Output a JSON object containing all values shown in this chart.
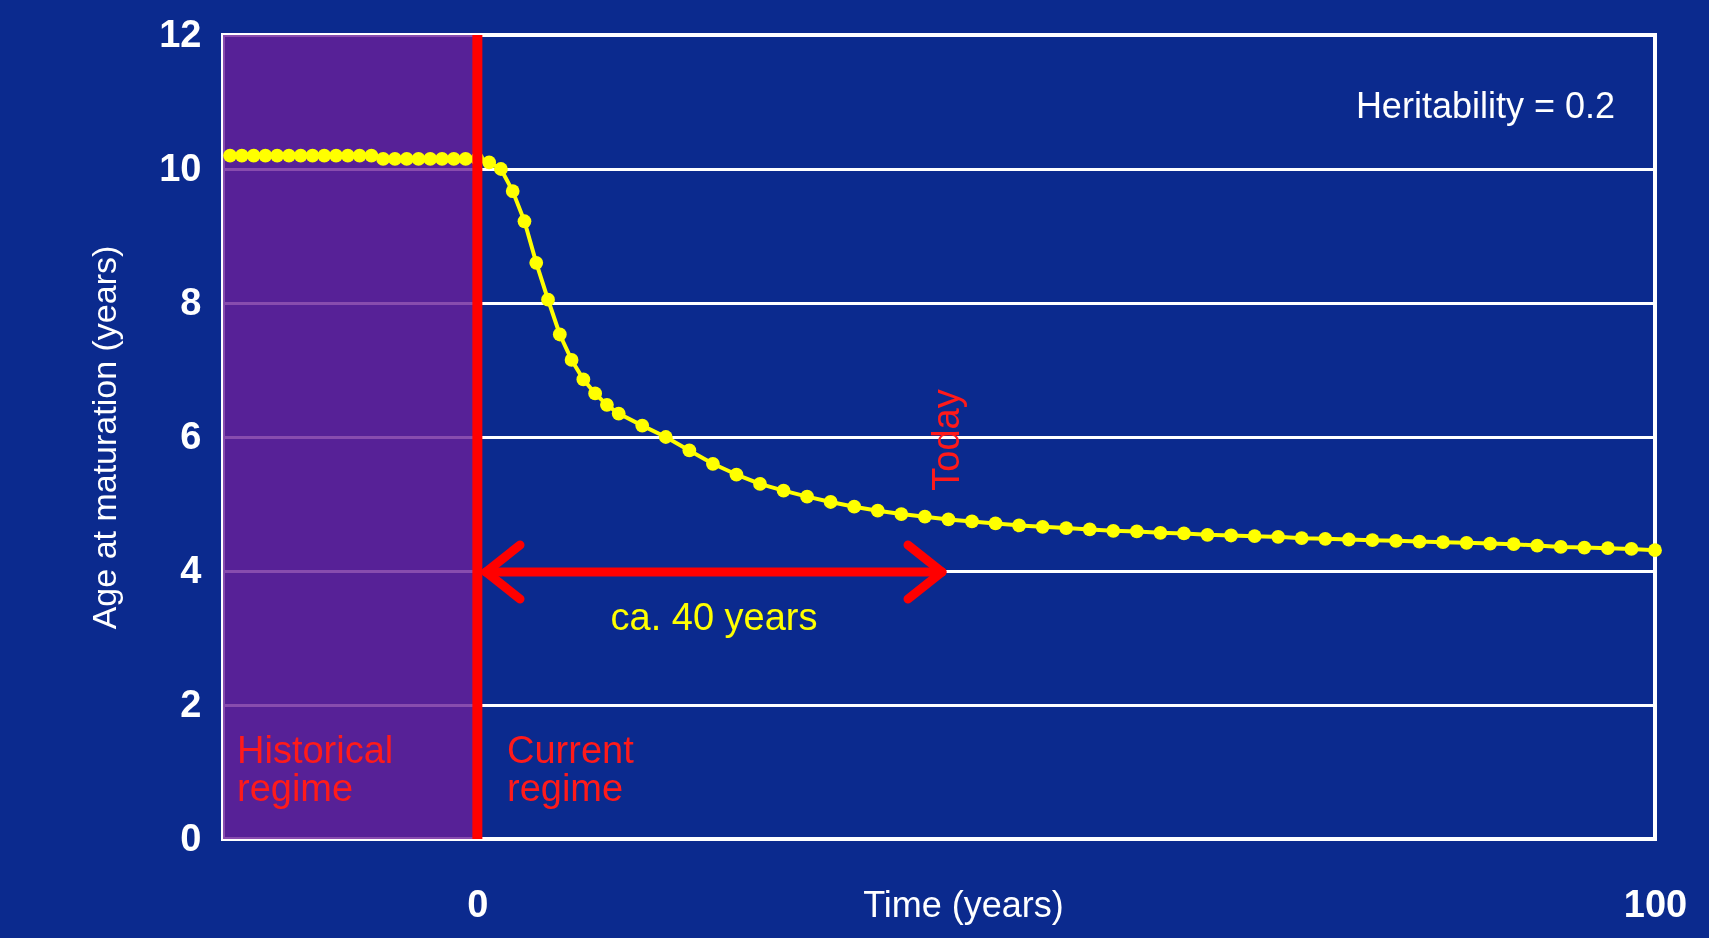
{
  "chart_data": {
    "type": "line",
    "xlabel": "Time (years)",
    "ylabel": "Age at maturation (years)",
    "xlim": [
      -21.6,
      100
    ],
    "xticks": [
      0,
      100
    ],
    "ylim": [
      0,
      12
    ],
    "yticks": [
      0,
      2,
      4,
      6,
      8,
      10,
      12
    ],
    "grid": "y",
    "marker": "circle",
    "series": [
      {
        "color": "#ffff00",
        "x": [
          -21,
          -20,
          -19,
          -18,
          -17,
          -16,
          -15,
          -14,
          -13,
          -12,
          -11,
          -10,
          -9,
          -8,
          -7,
          -6,
          -5,
          -4,
          -3,
          -2,
          -1,
          0,
          1,
          2,
          3,
          4,
          5,
          6,
          7,
          8,
          9,
          10,
          11,
          12,
          14,
          16,
          18,
          20,
          22,
          24,
          26,
          28,
          30,
          32,
          34,
          36,
          38,
          40,
          42,
          44,
          46,
          48,
          50,
          52,
          54,
          56,
          58,
          60,
          62,
          64,
          66,
          68,
          70,
          72,
          74,
          76,
          78,
          80,
          82,
          84,
          86,
          88,
          90,
          92,
          94,
          96,
          98,
          100
        ],
        "values": [
          10.2,
          10.2,
          10.2,
          10.2,
          10.2,
          10.2,
          10.2,
          10.2,
          10.2,
          10.2,
          10.2,
          10.2,
          10.2,
          10.15,
          10.15,
          10.15,
          10.15,
          10.15,
          10.15,
          10.15,
          10.15,
          10.15,
          10.1,
          10.0,
          9.67,
          9.22,
          8.6,
          8.05,
          7.53,
          7.15,
          6.86,
          6.65,
          6.48,
          6.35,
          6.17,
          6.0,
          5.8,
          5.6,
          5.44,
          5.3,
          5.2,
          5.11,
          5.03,
          4.96,
          4.9,
          4.85,
          4.81,
          4.77,
          4.74,
          4.71,
          4.68,
          4.66,
          4.64,
          4.62,
          4.6,
          4.59,
          4.57,
          4.56,
          4.54,
          4.53,
          4.52,
          4.51,
          4.49,
          4.48,
          4.47,
          4.46,
          4.45,
          4.44,
          4.43,
          4.42,
          4.41,
          4.4,
          4.38,
          4.36,
          4.35,
          4.34,
          4.33,
          4.31
        ]
      }
    ],
    "ref_lines": [
      {
        "axis": "x",
        "value": 0,
        "color": "#ff0000"
      }
    ],
    "bands": [
      {
        "axis": "x",
        "from": -21.6,
        "to": 0,
        "label": "Historical regime",
        "color": "#6a1f9a"
      }
    ],
    "annotations": [
      "Heritability = 0.2",
      "Today",
      "ca. 40 years",
      "Current regime"
    ]
  }
}
